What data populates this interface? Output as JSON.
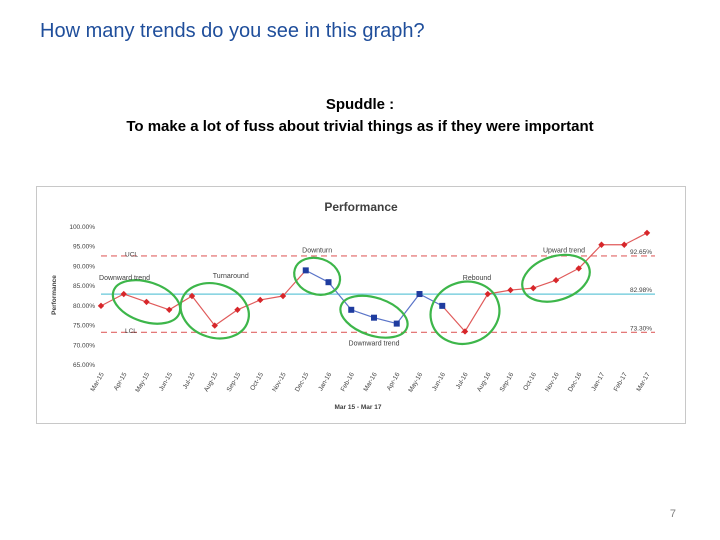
{
  "slide": {
    "title": "How many trends do you see in this graph?",
    "quote_line1": "Spuddle :",
    "quote_line2": "To make a lot of fuss about trivial things as if they were important",
    "page_number": "7"
  },
  "colors": {
    "title": "#1f4e9b",
    "red_series": "#d7262a",
    "red_line": "#e05a5a",
    "blue_series": "#1f3c9f",
    "blue_line": "#5a74c8",
    "control_limit": "#e06666",
    "center_line": "#66c7d8",
    "circle": "#3db64a"
  },
  "chart_data": {
    "type": "line",
    "title": "Performance",
    "ylabel": "Performance",
    "xlabel": "Mar 15 - Mar 17",
    "ylim": [
      65,
      100
    ],
    "y_ticks": [
      "65.00%",
      "70.00%",
      "75.00%",
      "80.00%",
      "85.00%",
      "90.00%",
      "95.00%",
      "100.00%"
    ],
    "y_tick_values": [
      65,
      70,
      75,
      80,
      85,
      90,
      95,
      100
    ],
    "categories": [
      "Mar-15",
      "Apr-15",
      "May-15",
      "Jun-15",
      "Jul-15",
      "Aug-15",
      "Sep-15",
      "Oct-15",
      "Nov-15",
      "Dec-15",
      "Jan-16",
      "Feb-16",
      "Mar-16",
      "Apr-16",
      "May-16",
      "Jun-16",
      "Jul-16",
      "Aug-16",
      "Sep-16",
      "Oct-16",
      "Nov-16",
      "Dec-16",
      "Jan-17",
      "Feb-17",
      "Mar-17"
    ],
    "category_labels": [
      "Mar-15",
      "Apr-15",
      "May-15",
      "Jun-15",
      "Jul-15",
      "Aug-15",
      "Sep-15",
      "Oct-15",
      "Nov-15",
      "Dec-15",
      "Jan-16",
      "Feb-16",
      "Mar-16",
      "Apr-16",
      "May-16",
      "Jun-16",
      "Jul-16",
      "Aug-16",
      "Sep-16",
      "Oct-16",
      "Nov-16",
      "Dec-16",
      "Jan-17",
      "Feb-17",
      "Mar-17"
    ],
    "values": [
      80.0,
      83.0,
      81.0,
      79.0,
      82.5,
      75.0,
      79.0,
      81.5,
      82.5,
      89.0,
      86.0,
      79.0,
      77.0,
      75.5,
      83.0,
      80.0,
      73.5,
      83.0,
      84.0,
      84.5,
      86.5,
      89.5,
      95.5,
      95.5,
      98.5
    ],
    "point_color": [
      "red",
      "red",
      "red",
      "red",
      "red",
      "red",
      "red",
      "red",
      "red",
      "blue",
      "blue",
      "blue",
      "blue",
      "blue",
      "blue",
      "blue",
      "red",
      "red",
      "red",
      "red",
      "red",
      "red",
      "red",
      "red",
      "red"
    ],
    "reference_lines": [
      {
        "label": "UCL",
        "value": 92.65,
        "value_label": "92.65%",
        "style": "dashed"
      },
      {
        "label": "",
        "value": 82.98,
        "value_label": "82.98%",
        "style": "solid"
      },
      {
        "label": "LCL",
        "value": 73.3,
        "value_label": "73.30%",
        "style": "dashed"
      }
    ],
    "annotations": [
      {
        "text": "Downward trend",
        "start": 1,
        "end": 3
      },
      {
        "text": "Turnaround",
        "start": 4,
        "end": 6
      },
      {
        "text": "Downturn",
        "start": 9,
        "end": 10
      },
      {
        "text": "Downward trend",
        "start": 11,
        "end": 13
      },
      {
        "text": "Rebound",
        "start": 15,
        "end": 17
      },
      {
        "text": "Upward trend",
        "start": 19,
        "end": 21
      }
    ],
    "grid": false,
    "legend": "none"
  }
}
